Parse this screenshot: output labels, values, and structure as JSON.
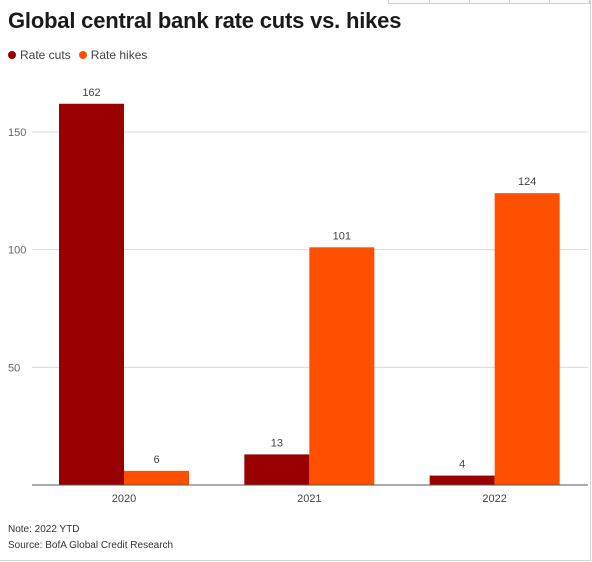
{
  "chart_data": {
    "type": "bar",
    "title": "Global central bank rate cuts vs. hikes",
    "categories": [
      "2020",
      "2021",
      "2022"
    ],
    "series": [
      {
        "name": "Rate cuts",
        "values": [
          162,
          13,
          4
        ],
        "color": "#990000"
      },
      {
        "name": "Rate hikes",
        "values": [
          6,
          101,
          124
        ],
        "color": "#ff5000"
      }
    ],
    "ylim": [
      0,
      180
    ],
    "yticks": [
      50,
      100,
      150
    ],
    "xlabel": "",
    "ylabel": "",
    "grid": true,
    "legend": "top-left"
  },
  "note": "Note: 2022 YTD",
  "source": "Source: BofA Global Credit Research"
}
